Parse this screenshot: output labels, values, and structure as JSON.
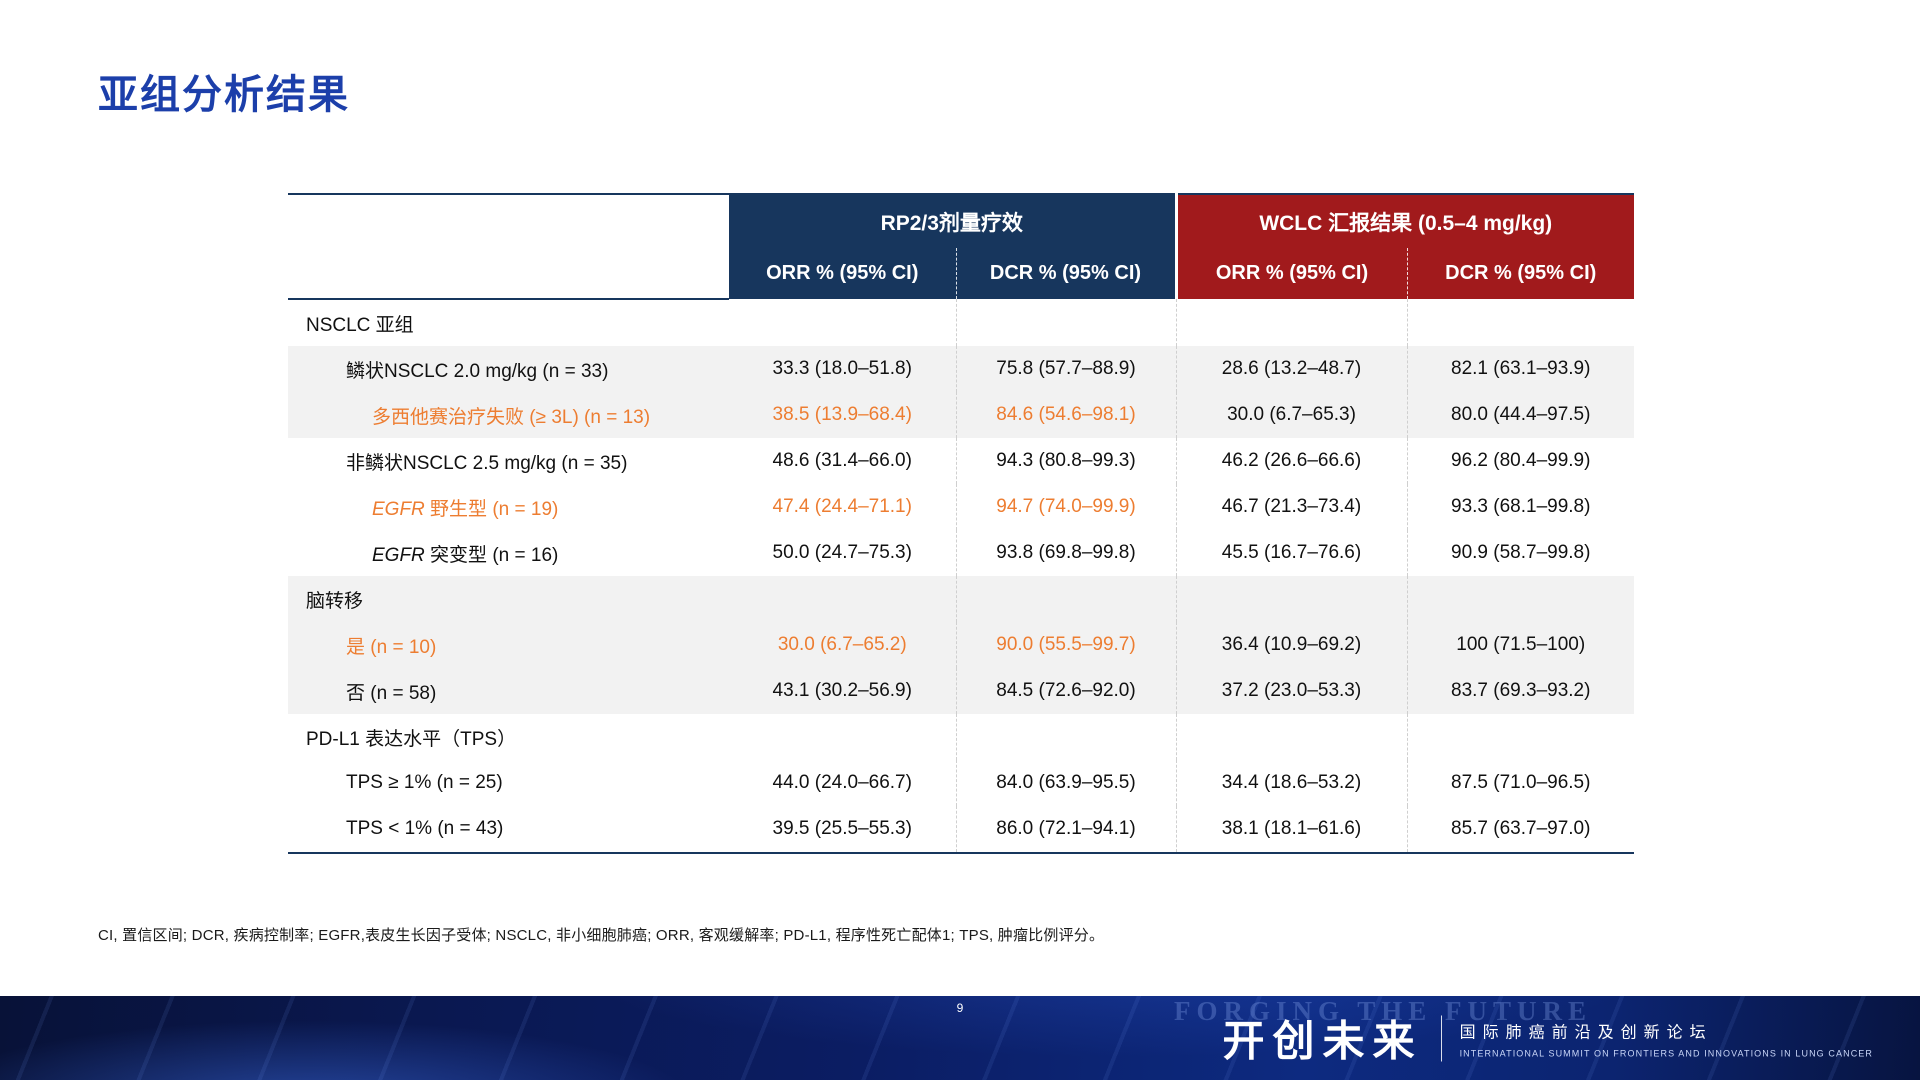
{
  "slide": {
    "title": "亚组分析结果",
    "page_number": "9",
    "footnote": "CI, 置信区间; DCR, 疾病控制率; EGFR,表皮生长因子受体; NSCLC, 非小细胞肺癌; ORR, 客观缓解率; PD-L1, 程序性死亡配体1; TPS, 肿瘤比例评分。"
  },
  "colors": {
    "title_blue": "#1C3FAA",
    "header_navy": "#17365D",
    "header_red": "#A11A1C",
    "highlight_orange": "#ED7D31",
    "row_band_gray": "#F2F2F2"
  },
  "table": {
    "group_headers": [
      {
        "label": "RP2/3剂量疗效",
        "color": "#17365D"
      },
      {
        "label": "WCLC 汇报结果 (0.5–4 mg/kg)",
        "color": "#A11A1C"
      }
    ],
    "column_headers": [
      "ORR % (95% CI)",
      "DCR % (95% CI)",
      "ORR % (95% CI)",
      "DCR % (95% CI)"
    ],
    "rows": [
      {
        "label": "NSCLC 亚组",
        "indent": 0,
        "band": "white",
        "section": true,
        "values": [
          "",
          "",
          "",
          ""
        ]
      },
      {
        "label": "鳞状NSCLC 2.0 mg/kg (n = 33)",
        "indent": 1,
        "band": "gray",
        "values": [
          "33.3 (18.0–51.8)",
          "75.8 (57.7–88.9)",
          "28.6 (13.2–48.7)",
          "82.1 (63.1–93.9)"
        ]
      },
      {
        "label": "多西他赛治疗失败 (≥ 3L) (n = 13)",
        "indent": 2,
        "band": "gray",
        "highlight_label": true,
        "highlight_cols": [
          0,
          1
        ],
        "values": [
          "38.5 (13.9–68.4)",
          "84.6 (54.6–98.1)",
          "30.0 (6.7–65.3)",
          "80.0 (44.4–97.5)"
        ]
      },
      {
        "label": "非鳞状NSCLC 2.5 mg/kg (n = 35)",
        "indent": 1,
        "band": "white",
        "values": [
          "48.6 (31.4–66.0)",
          "94.3 (80.8–99.3)",
          "46.2 (26.6–66.6)",
          "96.2 (80.4–99.9)"
        ]
      },
      {
        "label": "野生型 (n = 19)",
        "italic_prefix": "EGFR",
        "indent": 2,
        "band": "white",
        "highlight_label": true,
        "highlight_cols": [
          0,
          1
        ],
        "values": [
          "47.4 (24.4–71.1)",
          "94.7 (74.0–99.9)",
          "46.7 (21.3–73.4)",
          "93.3 (68.1–99.8)"
        ]
      },
      {
        "label": "突变型 (n = 16)",
        "italic_prefix": "EGFR",
        "indent": 2,
        "band": "white",
        "values": [
          "50.0 (24.7–75.3)",
          "93.8 (69.8–99.8)",
          "45.5 (16.7–76.6)",
          "90.9 (58.7–99.8)"
        ]
      },
      {
        "label": "脑转移",
        "indent": 0,
        "band": "gray",
        "section": true,
        "values": [
          "",
          "",
          "",
          ""
        ]
      },
      {
        "label": "是 (n = 10)",
        "indent": 1,
        "band": "gray",
        "highlight_label": true,
        "highlight_cols": [
          0,
          1
        ],
        "values": [
          "30.0 (6.7–65.2)",
          "90.0 (55.5–99.7)",
          "36.4 (10.9–69.2)",
          "100 (71.5–100)"
        ]
      },
      {
        "label": "否 (n = 58)",
        "indent": 1,
        "band": "gray",
        "values": [
          "43.1 (30.2–56.9)",
          "84.5 (72.6–92.0)",
          "37.2 (23.0–53.3)",
          "83.7 (69.3–93.2)"
        ]
      },
      {
        "label": "PD-L1 表达水平（TPS）",
        "indent": 0,
        "band": "white",
        "section": true,
        "values": [
          "",
          "",
          "",
          ""
        ]
      },
      {
        "label": "TPS ≥ 1% (n = 25)",
        "indent": 1,
        "band": "white",
        "values": [
          "44.0 (24.0–66.7)",
          "84.0 (63.9–95.5)",
          "34.4 (18.6–53.2)",
          "87.5 (71.0–96.5)"
        ]
      },
      {
        "label": "TPS < 1% (n = 43)",
        "indent": 1,
        "band": "white",
        "values": [
          "39.5 (25.5–55.3)",
          "86.0 (72.1–94.1)",
          "38.1 (18.1–61.6)",
          "85.7 (63.7–97.0)"
        ]
      }
    ]
  },
  "footer": {
    "watermark": "FORGING THE FUTURE",
    "brand_cn": "开创未来",
    "tagline_cn": "国际肺癌前沿及创新论坛",
    "tagline_en": "INTERNATIONAL SUMMIT ON FRONTIERS AND INNOVATIONS IN LUNG CANCER"
  }
}
